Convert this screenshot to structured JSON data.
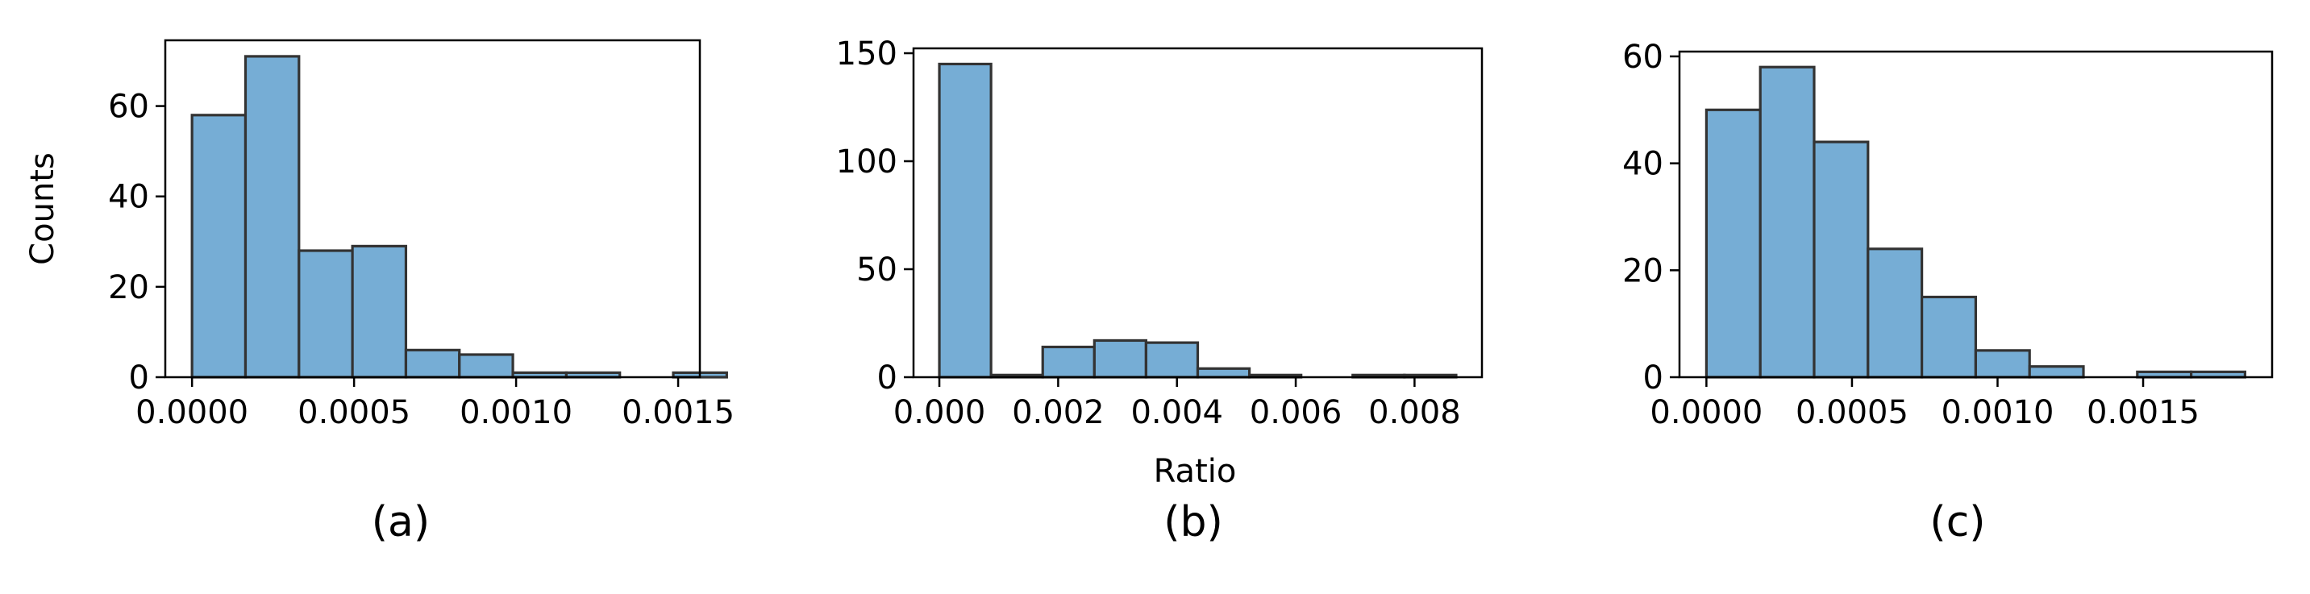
{
  "chart_data": [
    {
      "type": "bar",
      "caption": "(a)",
      "xlabel": "",
      "ylabel": "Counts",
      "bin_edges": [
        0.0,
        0.000165,
        0.00033,
        0.000495,
        0.00066,
        0.000825,
        0.00099,
        0.001155,
        0.00132,
        0.001485
      ],
      "values": [
        58,
        71,
        28,
        29,
        6,
        5,
        1,
        1,
        0,
        1
      ],
      "bin_width": 0.000165,
      "xlim": [
        -8.25e-05,
        0.001567
      ],
      "ylim": [
        0,
        74.55
      ],
      "xticks": [
        0.0,
        0.0005,
        0.001,
        0.0015
      ],
      "xtick_labels": [
        "0.0000",
        "0.0005",
        "0.0010",
        "0.0015"
      ],
      "yticks": [
        0,
        20,
        40,
        60
      ],
      "ytick_labels": [
        "0",
        "20",
        "40",
        "60"
      ],
      "bar_color": "#76ADD5",
      "edge_color": "#333333"
    },
    {
      "type": "bar",
      "caption": "(b)",
      "xlabel": "Ratio",
      "ylabel": "",
      "bin_edges": [
        0.0,
        0.00087,
        0.00174,
        0.00261,
        0.00348,
        0.00435,
        0.00522,
        0.00609,
        0.00696,
        0.00783
      ],
      "values": [
        145,
        1,
        14,
        17,
        16,
        4,
        1,
        0,
        1,
        1
      ],
      "bin_width": 0.00087,
      "xlim": [
        -0.000435,
        0.009135
      ],
      "ylim": [
        0,
        152.25
      ],
      "xticks": [
        0.0,
        0.002,
        0.004,
        0.006,
        0.008
      ],
      "xtick_labels": [
        "0.000",
        "0.002",
        "0.004",
        "0.006",
        "0.008"
      ],
      "yticks": [
        0,
        50,
        100,
        150
      ],
      "ytick_labels": [
        "0",
        "50",
        "100",
        "150"
      ],
      "bar_color": "#76ADD5",
      "edge_color": "#333333"
    },
    {
      "type": "bar",
      "caption": "(c)",
      "xlabel": "",
      "ylabel": "",
      "bin_edges": [
        0.0,
        0.000185,
        0.00037,
        0.000555,
        0.00074,
        0.000925,
        0.00111,
        0.001295,
        0.00148,
        0.001665
      ],
      "values": [
        50,
        58,
        44,
        24,
        15,
        5,
        2,
        0,
        1,
        1
      ],
      "bin_width": 0.000185,
      "xlim": [
        -9.25e-05,
        0.001943
      ],
      "ylim": [
        0,
        60.9
      ],
      "xticks": [
        0.0,
        0.0005,
        0.001,
        0.0015
      ],
      "xtick_labels": [
        "0.0000",
        "0.0005",
        "0.0010",
        "0.0015"
      ],
      "yticks": [
        0,
        20,
        40,
        60
      ],
      "ytick_labels": [
        "0",
        "20",
        "40",
        "60"
      ],
      "bar_color": "#76ADD5",
      "edge_color": "#333333"
    }
  ]
}
